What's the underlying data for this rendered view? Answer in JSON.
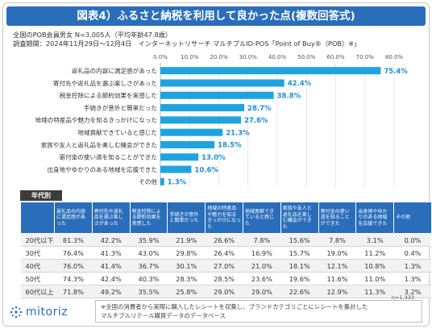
{
  "title": "図表4）ふるさと納税を利用して良かった点(複数回答式)",
  "meta": {
    "line1": "全国のPOB会員男女 N=3,005人（平均年齢47.8歳）",
    "line2": "調査期間：2024年11月29日～12月4日　インターネットリサーチ マルチプルID-POS「Point of Buy®（POB）※」"
  },
  "colors": {
    "accent": "#2a6ebb",
    "bar": "#1fa3e0",
    "value_text": "#1f8fd6"
  },
  "chart_data": {
    "type": "bar",
    "orientation": "horizontal",
    "categories": [
      "返礼品の内容に満足感があった",
      "寄付先や返礼品を選ぶ楽しさがあった",
      "税金控除による節約効果を実感した",
      "手続きが意外と簡単だった",
      "地域の特産品や魅力を知るきっかけになった",
      "地域貢献できていると感じた",
      "家族や友人と返礼品を楽しむ機会ができた",
      "寄付金の使い道を知ることができた",
      "出身地やゆかりのある地域を応援できた",
      "その他"
    ],
    "values": [
      75.4,
      42.4,
      38.8,
      28.7,
      27.6,
      21.3,
      18.5,
      13.0,
      10.6,
      1.3
    ],
    "value_labels": [
      "75.4%",
      "42.4%",
      "38.8%",
      "28.7%",
      "27.6%",
      "21.3%",
      "18.5%",
      "13.0%",
      "10.6%",
      "1.3%"
    ],
    "x_ticks": [
      "0.0%",
      "10.0%",
      "20.0%",
      "30.0%",
      "40.0%",
      "50.0%",
      "60.0%",
      "70.0%",
      "80.0%"
    ],
    "xlim": [
      0,
      80
    ],
    "grid": true
  },
  "table": {
    "section_label": "年代別",
    "headers": [
      "返礼品の内容に満足感があった",
      "寄付先や返礼品を選ぶ楽しさがあった",
      "税金控除による節約効果を実感した",
      "手続きが意外と簡単だった",
      "地域の特産品や魅力を知るきっかけになった",
      "地域貢献できていると感じた",
      "家族や友人と返礼品を楽しむ機会ができた",
      "寄付金の使い道を知ることができた",
      "出身地やゆかりのある地域を応援できた",
      "その他"
    ],
    "rows": [
      {
        "label": "20代以下",
        "values": [
          "81.3%",
          "42.2%",
          "35.9%",
          "21.9%",
          "26.6%",
          "7.8%",
          "15.6%",
          "7.8%",
          "3.1%",
          "0.0%"
        ]
      },
      {
        "label": "30代",
        "values": [
          "76.4%",
          "41.3%",
          "43.0%",
          "29.8%",
          "26.4%",
          "16.9%",
          "15.7%",
          "19.0%",
          "11.2%",
          "0.4%"
        ]
      },
      {
        "label": "40代",
        "values": [
          "76.0%",
          "41.4%",
          "36.7%",
          "30.1%",
          "27.0%",
          "21.0%",
          "18.1%",
          "12.1%",
          "10.8%",
          "1.3%"
        ]
      },
      {
        "label": "50代",
        "values": [
          "74.3%",
          "42.4%",
          "40.3%",
          "28.3%",
          "28.5%",
          "23.6%",
          "19.6%",
          "11.6%",
          "11.0%",
          "1.3%"
        ]
      },
      {
        "label": "60代以上",
        "values": [
          "71.8%",
          "49.2%",
          "35.5%",
          "25.8%",
          "29.0%",
          "29.0%",
          "22.6%",
          "12.9%",
          "11.3%",
          "3.2%"
        ]
      }
    ],
    "n_note": "n=1,433"
  },
  "footnote": {
    "line1": "※全国の消費者から実際に購入したレシートを収集し、ブランドカテゴリごとにレシートを集計した",
    "line2": "マルチプルリテール購買データのデータベース"
  },
  "logo": {
    "text": "mitoriz",
    "icon": "mitoriz-dot-logo-icon"
  }
}
